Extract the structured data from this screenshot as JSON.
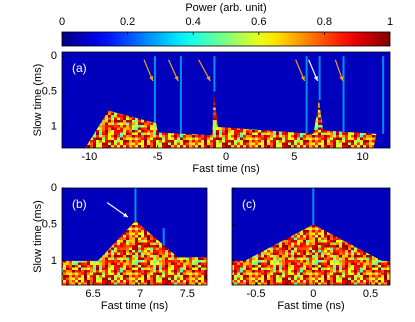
{
  "chart_data": [
    {
      "type": "colorbar",
      "title": "Power (arb. unit)",
      "colormap": "jet",
      "xlim": [
        0,
        1
      ],
      "xticks": [
        0,
        0.2,
        0.4,
        0.6,
        0.8,
        1
      ]
    },
    {
      "type": "heatmap",
      "panel_label": "(a)",
      "x_label": "Fast time (ns)",
      "y_label": "Slow time (ms)",
      "xlim": [
        -12,
        12
      ],
      "xticks": [
        -10,
        -5,
        0,
        5,
        10
      ],
      "ylim": [
        -0.06,
        1.3
      ],
      "yticks": [
        0,
        0.5,
        1
      ],
      "y_reversed": true
    },
    {
      "type": "heatmap",
      "panel_label": "(b)",
      "x_label": "Fast time (ns)",
      "y_label": "Slow time (ms)",
      "xlim": [
        6.17,
        7.71
      ],
      "xticks": [
        6.5,
        7,
        7.5
      ],
      "ylim": [
        0,
        1.33
      ],
      "yticks": [
        0,
        0.5,
        1
      ],
      "y_reversed": true
    },
    {
      "type": "heatmap",
      "panel_label": "(c)",
      "x_label": "Fast time (ns)",
      "xlim": [
        -0.71,
        0.67
      ],
      "xticks": [
        -0.5,
        0,
        0.5
      ],
      "ylim": [
        0,
        1.33
      ],
      "yticks": [
        0,
        0.5,
        1
      ],
      "y_reversed": true,
      "y_tick_labels": false
    }
  ]
}
